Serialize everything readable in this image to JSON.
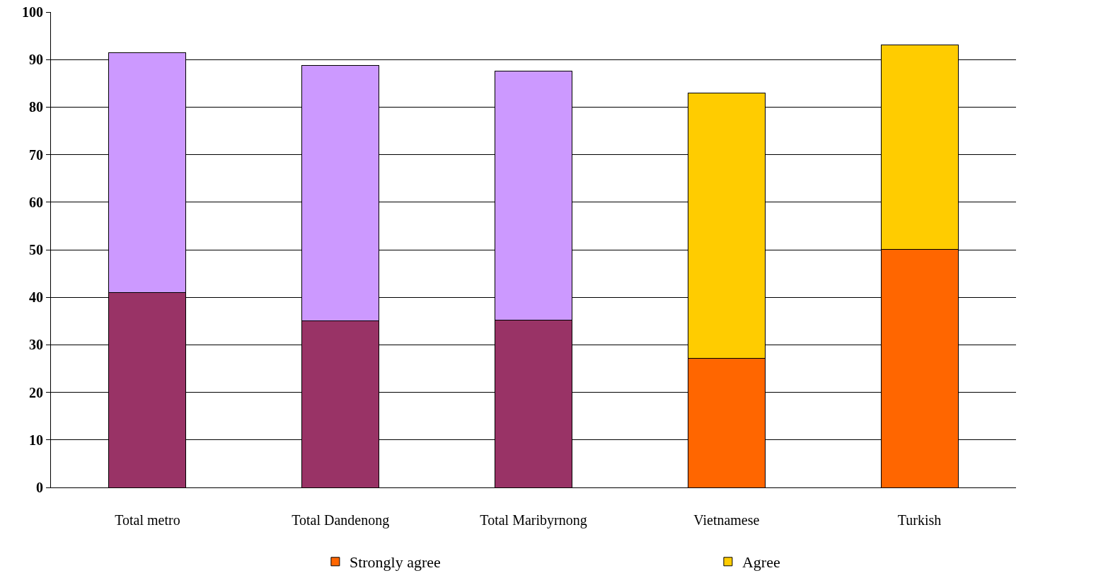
{
  "chart_data": {
    "type": "bar",
    "stacked": true,
    "categories": [
      "Total metro",
      "Total Dandenong",
      "Total Maribyrnong",
      "Vietnamese",
      "Turkish"
    ],
    "series": [
      {
        "name": "Strongly agree",
        "color": "#ff6600",
        "colors": [
          "#993366",
          "#993366",
          "#993366",
          "#ff6600",
          "#ff6600"
        ],
        "values": [
          41,
          35,
          35.2,
          27.2,
          50.1
        ]
      },
      {
        "name": "Agree",
        "color": "#ffcc00",
        "colors": [
          "#cc99ff",
          "#cc99ff",
          "#cc99ff",
          "#ffcc00",
          "#ffcc00"
        ],
        "values": [
          50.5,
          53.7,
          52.4,
          55.8,
          43
        ]
      }
    ],
    "ylim": [
      0,
      100
    ],
    "yticks": [
      0,
      10,
      20,
      30,
      40,
      50,
      60,
      70,
      80,
      90,
      100
    ],
    "grid": "y",
    "legend": "bottom"
  }
}
